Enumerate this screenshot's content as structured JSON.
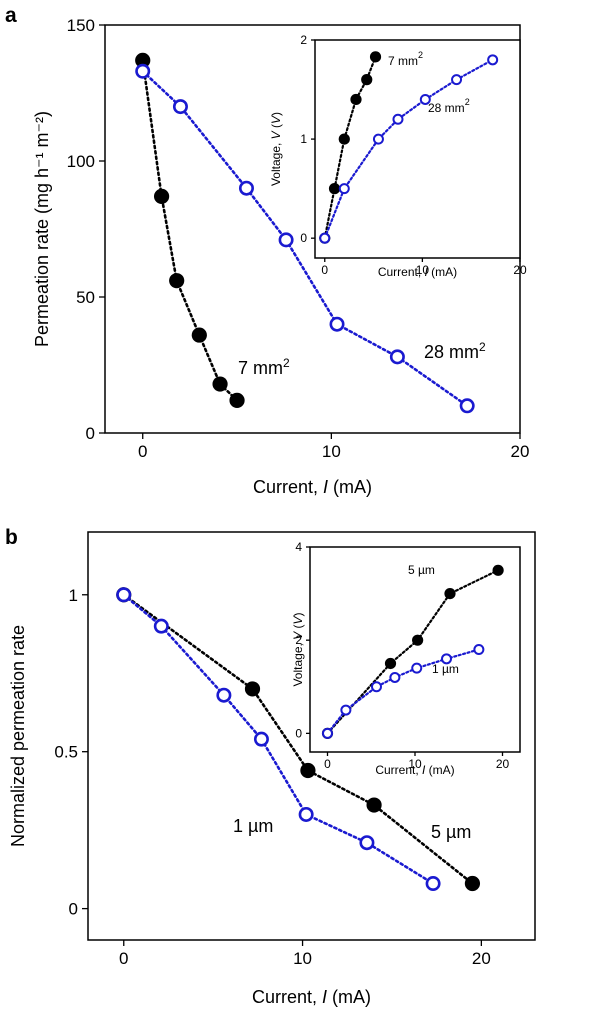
{
  "colors": {
    "black": "#000000",
    "blue": "#1a1ad0"
  },
  "chart_data": [
    {
      "panel": "a",
      "type": "scatter",
      "xlabel": "Current, I (mA)",
      "ylabel": "Permeation rate (mg h⁻¹ m⁻²)",
      "xlim": [
        -2,
        20
      ],
      "ylim": [
        0,
        150
      ],
      "xticks": [
        "0",
        "10",
        "20"
      ],
      "yticks": [
        "0",
        "50",
        "100",
        "150"
      ],
      "series": [
        {
          "name": "7 mm²",
          "marker": "filled",
          "color": "#000000",
          "x": [
            0,
            1,
            1.8,
            3,
            4.1,
            5
          ],
          "y": [
            137,
            87,
            56,
            36,
            18,
            12
          ]
        },
        {
          "name": "28 mm²",
          "marker": "open",
          "color": "#1a1ad0",
          "x": [
            0,
            2,
            5.5,
            7.6,
            10.3,
            13.5,
            17.2
          ],
          "y": [
            133,
            120,
            90,
            71,
            40,
            28,
            10
          ]
        }
      ]
    },
    {
      "panel": "a-inset",
      "type": "scatter",
      "xlabel": "Current, I (mA)",
      "ylabel": "Voltage, V (V)",
      "xlim": [
        -1,
        20
      ],
      "ylim": [
        -0.2,
        2
      ],
      "xticks": [
        "0",
        "10",
        "20"
      ],
      "yticks": [
        "0",
        "1",
        "2"
      ],
      "series": [
        {
          "name": "7 mm²",
          "marker": "filled",
          "color": "#000000",
          "x": [
            0,
            1,
            2,
            3.2,
            4.3,
            5.2
          ],
          "y": [
            0,
            0.5,
            1.0,
            1.4,
            1.6,
            1.83
          ]
        },
        {
          "name": "28 mm²",
          "marker": "open",
          "color": "#1a1ad0",
          "x": [
            0,
            2,
            5.5,
            7.5,
            10.3,
            13.5,
            17.2
          ],
          "y": [
            0,
            0.5,
            1.0,
            1.2,
            1.4,
            1.6,
            1.8
          ]
        }
      ]
    },
    {
      "panel": "b",
      "type": "scatter",
      "xlabel": "Current, I (mA)",
      "ylabel": "Normalized permeation rate",
      "xlim": [
        -2,
        23
      ],
      "ylim": [
        -0.1,
        1.2
      ],
      "xticks": [
        "0",
        "10",
        "20"
      ],
      "yticks": [
        "0",
        "0.5",
        "1"
      ],
      "series": [
        {
          "name": "5 µm",
          "marker": "filled",
          "color": "#000000",
          "x": [
            0,
            7.2,
            10.3,
            14,
            19.5
          ],
          "y": [
            1,
            0.7,
            0.44,
            0.33,
            0.08
          ]
        },
        {
          "name": "1 µm",
          "marker": "open",
          "color": "#1a1ad0",
          "x": [
            0,
            2.1,
            5.6,
            7.7,
            10.2,
            13.6,
            17.3
          ],
          "y": [
            1,
            0.9,
            0.68,
            0.54,
            0.3,
            0.21,
            0.08
          ]
        }
      ]
    },
    {
      "panel": "b-inset",
      "type": "scatter",
      "xlabel": "Current, I (mA)",
      "ylabel": "Voltage, V (V)",
      "xlim": [
        -2,
        22
      ],
      "ylim": [
        -0.4,
        4
      ],
      "xticks": [
        "0",
        "10",
        "20"
      ],
      "yticks": [
        "0",
        "2",
        "4"
      ],
      "series": [
        {
          "name": "5 µm",
          "marker": "filled",
          "color": "#000000",
          "x": [
            0,
            7.2,
            10.3,
            14,
            19.5
          ],
          "y": [
            0,
            1.5,
            2.0,
            3.0,
            3.5
          ]
        },
        {
          "name": "1 µm",
          "marker": "open",
          "color": "#1a1ad0",
          "x": [
            0,
            2.1,
            5.6,
            7.7,
            10.2,
            13.6,
            17.3
          ],
          "y": [
            0,
            0.5,
            1.0,
            1.2,
            1.4,
            1.6,
            1.8
          ]
        }
      ]
    }
  ]
}
